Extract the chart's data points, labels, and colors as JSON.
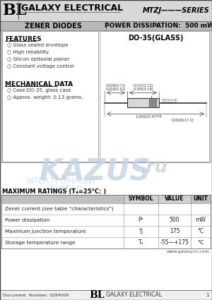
{
  "title_bl": "BL",
  "title_company": "GALAXY ELECTRICAL",
  "title_series": "MTZJ———SERIES",
  "subtitle_left": "ZENER DIODES",
  "subtitle_right": "POWER DISSIPATION:  500 mW",
  "features_title": "FEATURES",
  "features": [
    "Glass sealed envelope",
    "High reliability",
    "Silicon epitaxial planer",
    "Constant voltage control"
  ],
  "mech_title": "MECHANICAL DATA",
  "mech": [
    "Case:DO-35, glass case",
    "Approx. weight: 0.13 grams."
  ],
  "package_title": "DO-35(GLASS)",
  "watermark_text": "KAZUS",
  "watermark_ru": ".ru",
  "watermark_sub1": "ЭЛЕКТРОННЫЙ",
  "watermark_sub2": "ПОРТАЛ",
  "table_title": "MAXIMUM RATINGS (Tₐ=25°C: )",
  "col_headers": [
    "SYMBOL",
    "VALUE",
    "UNIT"
  ],
  "rows": [
    [
      "Zener current (see table \"characteristics\")",
      "",
      "",
      ""
    ],
    [
      "Power dissipation",
      "Pᵊ",
      "500",
      "mW"
    ],
    [
      "Maximum junction temperature",
      "Tⱼ",
      "175",
      "°C"
    ],
    [
      "Storage temperature range",
      "Tₛ",
      "-55—+175",
      "℃"
    ]
  ],
  "footer_left": "Document  Number: 0284000",
  "footer_website": "www.galaxycn.com",
  "footer_bl": "BL",
  "footer_company": "GALAXY ELECTRICAL",
  "footer_page": "1",
  "bg": "#ffffff",
  "header_gray": "#d8d8d8",
  "subheader_gray": "#b8b8b8",
  "panel_border": "#888888",
  "watermark_color": "#c5d5e5",
  "table_header_gray": "#c0c0c0",
  "table_value_gray": "#d0d0d0"
}
